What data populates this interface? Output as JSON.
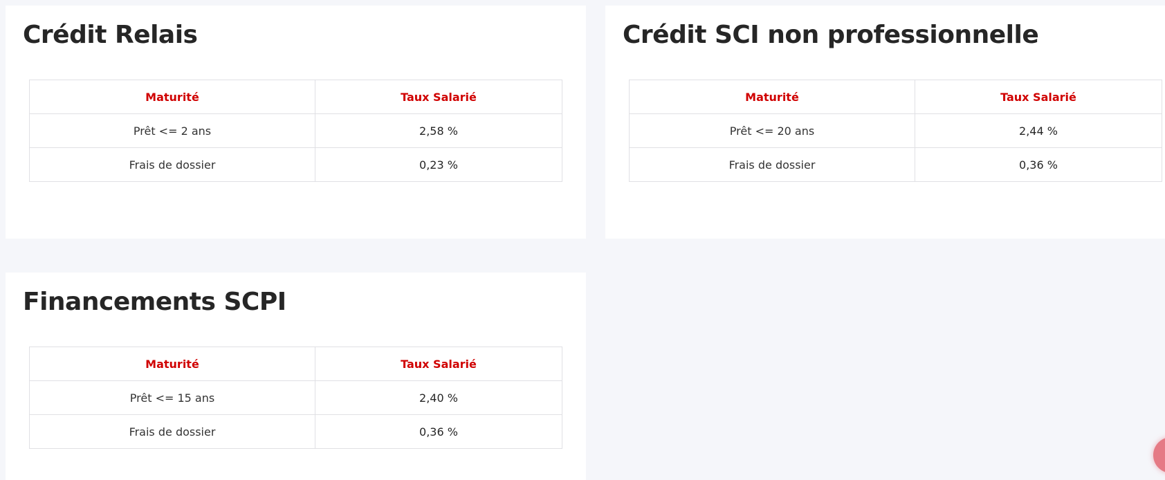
{
  "sections": [
    {
      "title": "Crédit Relais",
      "headers": [
        "Maturité",
        "Taux Salarié"
      ],
      "rows": [
        [
          "Prêt <= 2 ans",
          "2,58 %"
        ],
        [
          "Frais de dossier",
          "0,23 %"
        ]
      ]
    },
    {
      "title": "Crédit SCI non professionnelle",
      "headers": [
        "Maturité",
        "Taux Salarié"
      ],
      "rows": [
        [
          "Prêt <= 20 ans",
          "2,44 %"
        ],
        [
          "Frais de dossier",
          "0,36 %"
        ]
      ]
    },
    {
      "title": "Financements SCPI",
      "headers": [
        "Maturité",
        "Taux Salarié"
      ],
      "rows": [
        [
          "Prêt <= 15 ans",
          "2,40 %"
        ],
        [
          "Frais de dossier",
          "0,36 %"
        ]
      ]
    }
  ],
  "colors": {
    "accent": "#d00000",
    "background": "#f5f6fa",
    "fab": "#e57a85"
  }
}
